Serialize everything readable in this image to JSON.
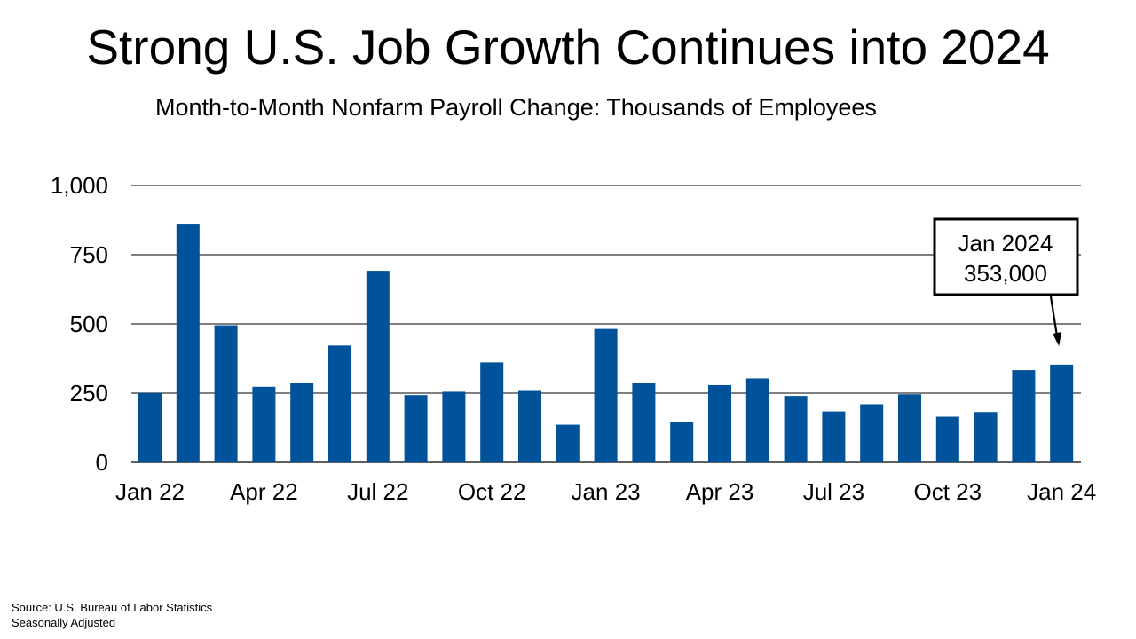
{
  "chart_data": {
    "type": "bar",
    "title": "Strong U.S. Job Growth Continues into 2024",
    "subtitle": "Month-to-Month Nonfarm Payroll Change: Thousands of Employees",
    "xlabel": "",
    "ylabel": "",
    "ylim": [
      0,
      1000
    ],
    "yticks": [
      0,
      250,
      500,
      750,
      1000
    ],
    "ytick_labels": [
      "0",
      "250",
      "500",
      "750",
      "1,000"
    ],
    "grid": true,
    "bar_color": "#00529B",
    "categories": [
      "Jan 22",
      "Feb 22",
      "Mar 22",
      "Apr 22",
      "May 22",
      "Jun 22",
      "Jul 22",
      "Aug 22",
      "Sep 22",
      "Oct 22",
      "Nov 22",
      "Dec 22",
      "Jan 23",
      "Feb 23",
      "Mar 23",
      "Apr 23",
      "May 23",
      "Jun 23",
      "Jul 23",
      "Aug 23",
      "Sep 23",
      "Oct 23",
      "Nov 23",
      "Dec 23",
      "Jan 24"
    ],
    "values": [
      250,
      862,
      495,
      273,
      286,
      422,
      692,
      243,
      255,
      361,
      258,
      136,
      482,
      287,
      146,
      279,
      303,
      240,
      184,
      210,
      246,
      165,
      182,
      333,
      353
    ],
    "xtick_labels": [
      {
        "index": 0,
        "label": "Jan 22"
      },
      {
        "index": 3,
        "label": "Apr 22"
      },
      {
        "index": 6,
        "label": "Jul 22"
      },
      {
        "index": 9,
        "label": "Oct 22"
      },
      {
        "index": 12,
        "label": "Jan 23"
      },
      {
        "index": 15,
        "label": "Apr 23"
      },
      {
        "index": 18,
        "label": "Jul 23"
      },
      {
        "index": 21,
        "label": "Oct 23"
      },
      {
        "index": 24,
        "label": "Jan 24"
      }
    ],
    "annotation": {
      "target_index": 24,
      "line1": "Jan 2024",
      "line2": "353,000"
    }
  },
  "footnotes": {
    "source": "Source: U.S. Bureau of Labor Statistics",
    "note": "Seasonally Adjusted"
  }
}
